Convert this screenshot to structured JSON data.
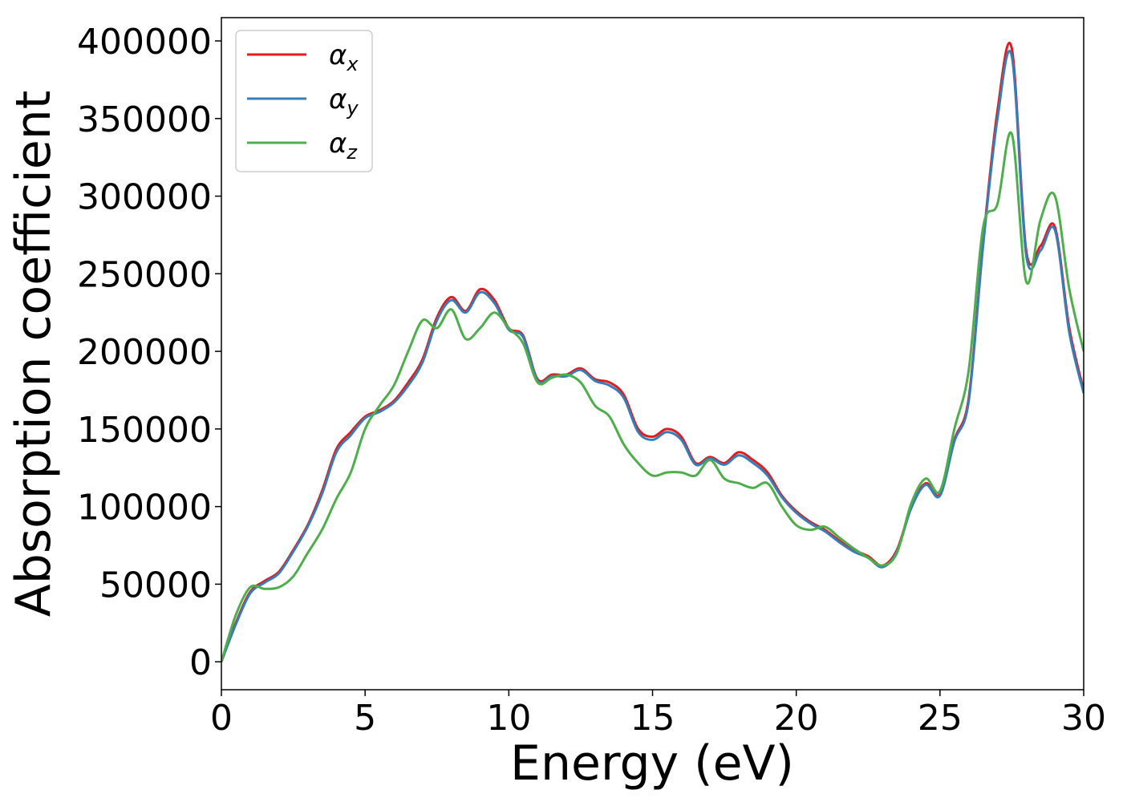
{
  "chart_data": {
    "type": "line",
    "title": "",
    "xlabel": "Energy (eV)",
    "ylabel": "Absorption coefficient",
    "xlim": [
      0,
      30
    ],
    "ylim": [
      -18000,
      415000
    ],
    "xticks": [
      0,
      5,
      10,
      15,
      20,
      25,
      30
    ],
    "yticks": [
      0,
      50000,
      100000,
      150000,
      200000,
      250000,
      300000,
      350000,
      400000
    ],
    "grid": false,
    "legend_position": "top-left",
    "x": [
      0,
      0.5,
      1,
      1.5,
      2,
      2.5,
      3,
      3.5,
      4,
      4.5,
      5,
      5.5,
      6,
      6.5,
      7,
      7.5,
      8,
      8.5,
      9,
      9.5,
      10,
      10.5,
      11,
      11.5,
      12,
      12.5,
      13,
      13.5,
      14,
      14.5,
      15,
      15.5,
      16,
      16.5,
      17,
      17.5,
      18,
      18.5,
      19,
      19.5,
      20,
      20.5,
      21,
      21.5,
      22,
      22.5,
      23,
      23.5,
      24,
      24.5,
      25,
      25.5,
      26,
      26.5,
      27,
      27.5,
      28,
      28.5,
      29,
      29.5,
      30
    ],
    "series": [
      {
        "name": "α",
        "subscript": "x",
        "color": "#e41a1c",
        "values": [
          0,
          25000,
          45000,
          52000,
          58000,
          72000,
          88000,
          110000,
          137000,
          148000,
          158000,
          162000,
          168000,
          180000,
          195000,
          222000,
          235000,
          226000,
          240000,
          233000,
          215000,
          210000,
          182000,
          185000,
          185000,
          189000,
          182000,
          180000,
          172000,
          150000,
          145000,
          150000,
          145000,
          128000,
          132000,
          128000,
          135000,
          130000,
          122000,
          107000,
          97000,
          90000,
          85000,
          78000,
          72000,
          68000,
          62000,
          72000,
          100000,
          115000,
          108000,
          143000,
          170000,
          270000,
          355000,
          395000,
          265000,
          268000,
          280000,
          215000,
          175000
        ]
      },
      {
        "name": "α",
        "subscript": "y",
        "color": "#377eb8",
        "values": [
          0,
          24000,
          44000,
          51000,
          57000,
          71000,
          87000,
          108000,
          135000,
          146000,
          157000,
          161000,
          167000,
          178000,
          193000,
          220000,
          233000,
          225000,
          238000,
          231000,
          214000,
          209000,
          181000,
          184000,
          184000,
          188000,
          181000,
          178000,
          170000,
          148000,
          143000,
          148000,
          143000,
          127000,
          131000,
          127000,
          133000,
          128000,
          120000,
          106000,
          96000,
          89000,
          84000,
          77000,
          71000,
          67000,
          61000,
          71000,
          99000,
          114000,
          107000,
          142000,
          168000,
          268000,
          350000,
          390000,
          262000,
          265000,
          278000,
          212000,
          173000
        ]
      },
      {
        "name": "α",
        "subscript": "z",
        "color": "#4daf4a",
        "values": [
          0,
          30000,
          48000,
          47000,
          48000,
          55000,
          70000,
          85000,
          105000,
          122000,
          150000,
          165000,
          178000,
          200000,
          220000,
          215000,
          227000,
          208000,
          215000,
          225000,
          215000,
          205000,
          180000,
          183000,
          185000,
          180000,
          165000,
          158000,
          140000,
          128000,
          120000,
          122000,
          122000,
          120000,
          130000,
          118000,
          115000,
          112000,
          115000,
          100000,
          88000,
          85000,
          87000,
          80000,
          73000,
          67000,
          62000,
          70000,
          102000,
          118000,
          110000,
          150000,
          188000,
          280000,
          295000,
          340000,
          245000,
          285000,
          300000,
          240000,
          200000
        ]
      }
    ]
  }
}
